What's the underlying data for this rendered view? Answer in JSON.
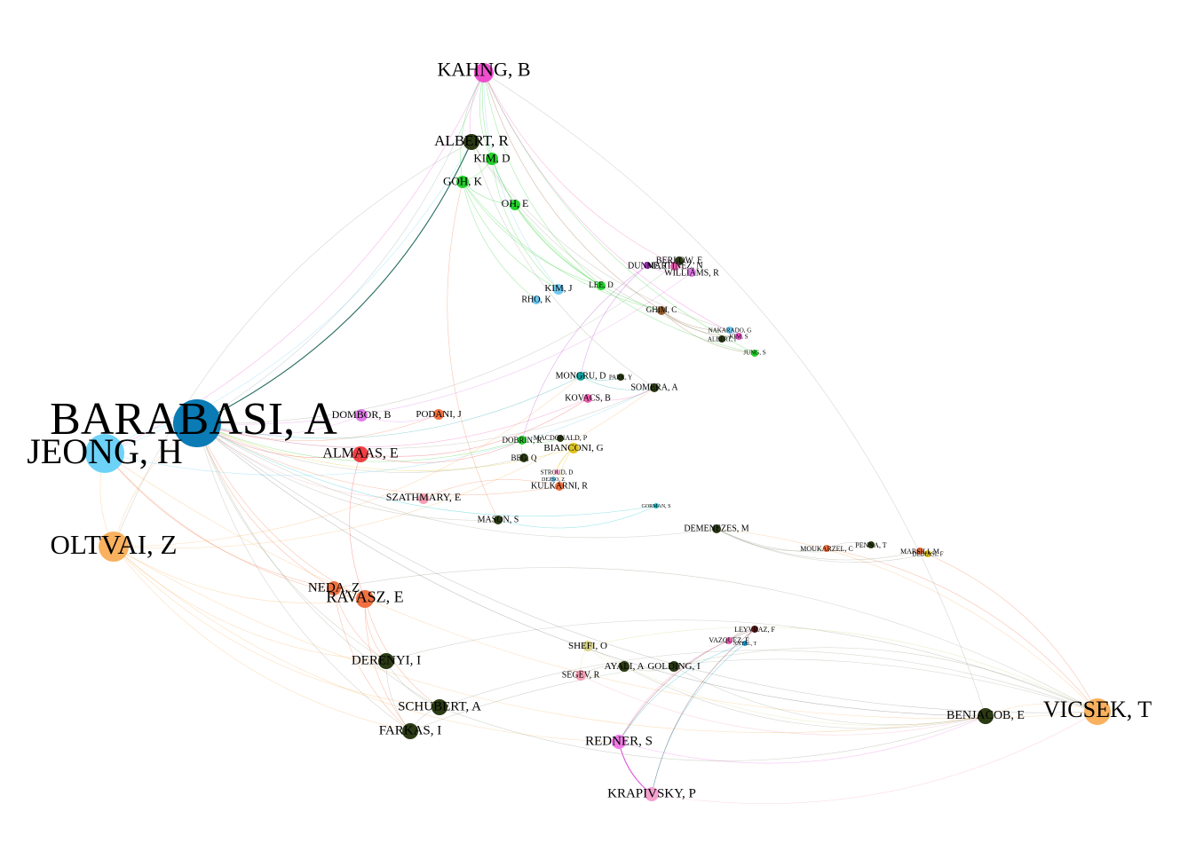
{
  "nodes": [
    {
      "id": "barabasi",
      "label": "BARABASI, A",
      "color": "#0a7bb5",
      "degree": 10
    },
    {
      "id": "jeong",
      "label": "JEONG, H",
      "color": "#6dd2f7",
      "degree": 8
    },
    {
      "id": "oltvai",
      "label": "OLTVAI, Z",
      "color": "#f9b15f",
      "degree": 7
    },
    {
      "id": "vicsek",
      "label": "VICSEK, T",
      "color": "#f9b15f",
      "degree": 7
    },
    {
      "id": "kahng",
      "label": "KAHNG, B",
      "color": "#ef4fcf",
      "degree": 5
    },
    {
      "id": "albert_r",
      "label": "ALBERT, R",
      "color": "#2b3a14",
      "degree": 4
    },
    {
      "id": "kim_d",
      "label": "KIM, D",
      "color": "#23d12b",
      "degree": 3
    },
    {
      "id": "goh_k",
      "label": "GOH, K",
      "color": "#23d12b",
      "degree": 3
    },
    {
      "id": "oh_e",
      "label": "OH, E",
      "color": "#23d12b",
      "degree": 2
    },
    {
      "id": "berlow",
      "label": "BERLOW, E",
      "color": "#2b3a14",
      "degree": 2
    },
    {
      "id": "dunne",
      "label": "DUNNE, J",
      "color": "#b43bd1",
      "degree": 2
    },
    {
      "id": "martinez",
      "label": "MARTINEZ, N",
      "color": "#f15fb3",
      "degree": 2
    },
    {
      "id": "williams",
      "label": "WILLIAMS, R",
      "color": "#e07be8",
      "degree": 2
    },
    {
      "id": "kim_j",
      "label": "KIM, J",
      "color": "#6dc9f2",
      "degree": 2
    },
    {
      "id": "lee_d",
      "label": "LEE, D",
      "color": "#23d12b",
      "degree": 2
    },
    {
      "id": "rho_k",
      "label": "RHO, K",
      "color": "#6dc9f2",
      "degree": 2
    },
    {
      "id": "ghim",
      "label": "GHIM, C",
      "color": "#8c5a2e",
      "degree": 2
    },
    {
      "id": "nakarado",
      "label": "NAKARADO, G",
      "color": "#6dc9f2",
      "degree": 1
    },
    {
      "id": "kim_s",
      "label": "KIM, S",
      "color": "#ef4fcf",
      "degree": 1
    },
    {
      "id": "albert_i",
      "label": "ALBERT, I",
      "color": "#2b3a14",
      "degree": 1
    },
    {
      "id": "jung",
      "label": "JUNG, S",
      "color": "#23d12b",
      "degree": 1
    },
    {
      "id": "mongru",
      "label": "MONGRU, D",
      "color": "#12a2a2",
      "degree": 2
    },
    {
      "id": "park_y",
      "label": "PARK, Y",
      "color": "#2b3a14",
      "degree": 1
    },
    {
      "id": "somera",
      "label": "SOMERA, A",
      "color": "#2b3a14",
      "degree": 2
    },
    {
      "id": "kovacs",
      "label": "KOVACS, B",
      "color": "#f15fb3",
      "degree": 2
    },
    {
      "id": "dombor",
      "label": "DOMBOR, B",
      "color": "#e07be8",
      "degree": 2
    },
    {
      "id": "podani",
      "label": "PODANI, J",
      "color": "#f07040",
      "degree": 2
    },
    {
      "id": "almaas",
      "label": "ALMAAS, E",
      "color": "#ef3f44",
      "degree": 3
    },
    {
      "id": "dobrin",
      "label": "DOBRIN, R",
      "color": "#23d12b",
      "degree": 2
    },
    {
      "id": "macdonald",
      "label": "MACDONALD, P",
      "color": "#2b3a14",
      "degree": 1
    },
    {
      "id": "bianconi",
      "label": "BIANCONI, G",
      "color": "#e0c31f",
      "degree": 2
    },
    {
      "id": "beg",
      "label": "BEG, Q",
      "color": "#2b3a14",
      "degree": 2
    },
    {
      "id": "stroud",
      "label": "STROUD, D",
      "color": "#f5a0cf",
      "degree": 1
    },
    {
      "id": "dezso",
      "label": "DEZSO, Z",
      "color": "#6dc9f2",
      "degree": 1
    },
    {
      "id": "kulkarni",
      "label": "KULKARNI, R",
      "color": "#f07040",
      "degree": 2
    },
    {
      "id": "szathmary",
      "label": "SZATHMARY, E",
      "color": "#f5a0b5",
      "degree": 2
    },
    {
      "id": "gorman",
      "label": "GORMAN, S",
      "color": "#12c3d2",
      "degree": 1
    },
    {
      "id": "mason",
      "label": "MASON, S",
      "color": "#2b3a14",
      "degree": 2
    },
    {
      "id": "demenezes",
      "label": "DEMENEZES, M",
      "color": "#2b3a14",
      "degree": 2
    },
    {
      "id": "moukarzel",
      "label": "MOUKARZEL, C",
      "color": "#f07040",
      "degree": 1
    },
    {
      "id": "penna",
      "label": "PENNA, T",
      "color": "#2b3a14",
      "degree": 1
    },
    {
      "id": "marsili",
      "label": "MARSILI, M",
      "color": "#f07040",
      "degree": 1
    },
    {
      "id": "debiasi",
      "label": "DEBIASI, F",
      "color": "#e0c31f",
      "degree": 1
    },
    {
      "id": "neda",
      "label": "NEDA, Z",
      "color": "#f07040",
      "degree": 3
    },
    {
      "id": "ravasz",
      "label": "RAVASZ, E",
      "color": "#f07040",
      "degree": 4
    },
    {
      "id": "derenyi",
      "label": "DERENYI, I",
      "color": "#2b3a14",
      "degree": 4
    },
    {
      "id": "schubert",
      "label": "SCHUBERT, A",
      "color": "#2b3a14",
      "degree": 4
    },
    {
      "id": "farkas",
      "label": "FARKAS, I",
      "color": "#2b3a14",
      "degree": 4
    },
    {
      "id": "leyvraz",
      "label": "LEYVRAZ, F",
      "color": "#5a1515",
      "degree": 1
    },
    {
      "id": "vazquez",
      "label": "VAZQUEZ, F",
      "color": "#f15fb3",
      "degree": 1
    },
    {
      "id": "antal",
      "label": "ANTAL, T",
      "color": "#12a2d2",
      "degree": 1
    },
    {
      "id": "shefi",
      "label": "SHEFI, O",
      "color": "#d8d48a",
      "degree": 2
    },
    {
      "id": "ayali",
      "label": "AYALI, A",
      "color": "#2b3a14",
      "degree": 2
    },
    {
      "id": "golding",
      "label": "GOLDING, I",
      "color": "#2b3a14",
      "degree": 2
    },
    {
      "id": "segev",
      "label": "SEGEV, R",
      "color": "#f5a0b5",
      "degree": 2
    },
    {
      "id": "benjacob",
      "label": "BENJACOB, E",
      "color": "#2b3a14",
      "degree": 4
    },
    {
      "id": "redner",
      "label": "REDNER, S",
      "color": "#f07be8",
      "degree": 3
    },
    {
      "id": "krapivsky",
      "label": "KRAPIVSKY, P",
      "color": "#f5a0cf",
      "degree": 3
    }
  ],
  "edges": [
    {
      "source": "barabasi",
      "target": "albert_r",
      "color": "#0b5b4b"
    },
    {
      "source": "barabasi",
      "target": "jeong",
      "color": "#6dd2f7"
    },
    {
      "source": "barabasi",
      "target": "oltvai",
      "color": "#f9b15f"
    },
    {
      "source": "barabasi",
      "target": "kahng",
      "color": "#8aa0a6"
    },
    {
      "source": "barabasi",
      "target": "vicsek",
      "color": "#8a8a8a"
    },
    {
      "source": "barabasi",
      "target": "ravasz",
      "color": "#f07040"
    },
    {
      "source": "barabasi",
      "target": "almaas",
      "color": "#ef3f44"
    },
    {
      "source": "barabasi",
      "target": "dombor",
      "color": "#e07be8"
    },
    {
      "source": "barabasi",
      "target": "podani",
      "color": "#f07040"
    },
    {
      "source": "barabasi",
      "target": "neda",
      "color": "#f07040"
    },
    {
      "source": "barabasi",
      "target": "derenyi",
      "color": "#9aa08a"
    },
    {
      "source": "barabasi",
      "target": "schubert",
      "color": "#9aa08a"
    },
    {
      "source": "barabasi",
      "target": "farkas",
      "color": "#9aa08a"
    },
    {
      "source": "barabasi",
      "target": "mason",
      "color": "#9aa08a"
    },
    {
      "source": "barabasi",
      "target": "szathmary",
      "color": "#f5a0b5"
    },
    {
      "source": "barabasi",
      "target": "bianconi",
      "color": "#e0c31f"
    },
    {
      "source": "barabasi",
      "target": "dobrin",
      "color": "#23d12b"
    },
    {
      "source": "barabasi",
      "target": "kulkarni",
      "color": "#f07040"
    },
    {
      "source": "barabasi",
      "target": "mongru",
      "color": "#12a2a2"
    },
    {
      "source": "barabasi",
      "target": "somera",
      "color": "#9aa08a"
    },
    {
      "source": "barabasi",
      "target": "kovacs",
      "color": "#f15fb3"
    },
    {
      "source": "barabasi",
      "target": "demenezes",
      "color": "#9aa08a"
    },
    {
      "source": "barabasi",
      "target": "beg",
      "color": "#9aa08a"
    },
    {
      "source": "barabasi",
      "target": "berlow",
      "color": "#9aa08a"
    },
    {
      "source": "barabasi",
      "target": "williams",
      "color": "#e07be8"
    },
    {
      "source": "barabasi",
      "target": "gorman",
      "color": "#12c3d2"
    },
    {
      "source": "jeong",
      "target": "oltvai",
      "color": "#f9b15f"
    },
    {
      "source": "jeong",
      "target": "albert_r",
      "color": "#6dd2f7"
    },
    {
      "source": "jeong",
      "target": "neda",
      "color": "#f07040"
    },
    {
      "source": "jeong",
      "target": "kahng",
      "color": "#ef4fcf"
    },
    {
      "source": "jeong",
      "target": "somera",
      "color": "#6dd2f7"
    },
    {
      "source": "jeong",
      "target": "ravasz",
      "color": "#f07040"
    },
    {
      "source": "jeong",
      "target": "vicsek",
      "color": "#f9b15f"
    },
    {
      "source": "oltvai",
      "target": "ravasz",
      "color": "#f9b15f"
    },
    {
      "source": "oltvai",
      "target": "somera",
      "color": "#f9b15f"
    },
    {
      "source": "oltvai",
      "target": "mongru",
      "color": "#f9b15f"
    },
    {
      "source": "oltvai",
      "target": "derenyi",
      "color": "#f9b15f"
    },
    {
      "source": "oltvai",
      "target": "schubert",
      "color": "#f9b15f"
    },
    {
      "source": "oltvai",
      "target": "farkas",
      "color": "#f9b15f"
    },
    {
      "source": "oltvai",
      "target": "benjacob",
      "color": "#f9b15f"
    },
    {
      "source": "oltvai",
      "target": "redner",
      "color": "#f9b15f"
    },
    {
      "source": "vicsek",
      "target": "benjacob",
      "color": "#f9b15f"
    },
    {
      "source": "vicsek",
      "target": "demenezes",
      "color": "#f9b15f"
    },
    {
      "source": "vicsek",
      "target": "farkas",
      "color": "#9aa08a"
    },
    {
      "source": "vicsek",
      "target": "derenyi",
      "color": "#9aa08a"
    },
    {
      "source": "vicsek",
      "target": "neda",
      "color": "#9aa08a"
    },
    {
      "source": "vicsek",
      "target": "shefi",
      "color": "#d8d48a"
    },
    {
      "source": "vicsek",
      "target": "golding",
      "color": "#9aa08a"
    },
    {
      "source": "vicsek",
      "target": "schubert",
      "color": "#9aa08a"
    },
    {
      "source": "vicsek",
      "target": "moukarzel",
      "color": "#f07040"
    },
    {
      "source": "vicsek",
      "target": "marsili",
      "color": "#f07040"
    },
    {
      "source": "kahng",
      "target": "albert_r",
      "color": "#ef4fcf"
    },
    {
      "source": "kahng",
      "target": "kim_d",
      "color": "#23d12b"
    },
    {
      "source": "kahng",
      "target": "goh_k",
      "color": "#23d12b"
    },
    {
      "source": "kahng",
      "target": "oh_e",
      "color": "#23d12b"
    },
    {
      "source": "kahng",
      "target": "kim_j",
      "color": "#6dc9f2"
    },
    {
      "source": "kahng",
      "target": "lee_d",
      "color": "#23d12b"
    },
    {
      "source": "kahng",
      "target": "ghim",
      "color": "#8c5a2e"
    },
    {
      "source": "kahng",
      "target": "jung",
      "color": "#23d12b"
    },
    {
      "source": "kahng",
      "target": "kim_s",
      "color": "#ef4fcf"
    },
    {
      "source": "kahng",
      "target": "williams",
      "color": "#f15fb3"
    },
    {
      "source": "goh_k",
      "target": "kim_d",
      "color": "#23d12b"
    },
    {
      "source": "goh_k",
      "target": "kim_j",
      "color": "#23d12b"
    },
    {
      "source": "goh_k",
      "target": "oh_e",
      "color": "#23d12b"
    },
    {
      "source": "goh_k",
      "target": "rho_k",
      "color": "#23d12b"
    },
    {
      "source": "goh_k",
      "target": "lee_d",
      "color": "#23d12b"
    },
    {
      "source": "goh_k",
      "target": "ghim",
      "color": "#23d12b"
    },
    {
      "source": "goh_k",
      "target": "mason",
      "color": "#f07040"
    },
    {
      "source": "kim_d",
      "target": "kim_j",
      "color": "#23d12b"
    },
    {
      "source": "kim_d",
      "target": "lee_d",
      "color": "#23d12b"
    },
    {
      "source": "oh_e",
      "target": "ghim",
      "color": "#23d12b"
    },
    {
      "source": "oh_e",
      "target": "jung",
      "color": "#23d12b"
    },
    {
      "source": "albert_r",
      "target": "somera",
      "color": "#9aa08a"
    },
    {
      "source": "albert_r",
      "target": "nakarado",
      "color": "#9aa08a"
    },
    {
      "source": "albert_r",
      "target": "albert_i",
      "color": "#9aa08a"
    },
    {
      "source": "albert_r",
      "target": "oltvai",
      "color": "#9aa08a"
    },
    {
      "source": "ghim",
      "target": "nakarado",
      "color": "#8c5a2e"
    },
    {
      "source": "ghim",
      "target": "kim_s",
      "color": "#8c5a2e"
    },
    {
      "source": "ghim",
      "target": "jung",
      "color": "#8c5a2e"
    },
    {
      "source": "berlow",
      "target": "dunne",
      "color": "#b43bd1"
    },
    {
      "source": "berlow",
      "target": "martinez",
      "color": "#f15fb3"
    },
    {
      "source": "berlow",
      "target": "williams",
      "color": "#e07be8"
    },
    {
      "source": "dunne",
      "target": "williams",
      "color": "#e07be8"
    },
    {
      "source": "dunne",
      "target": "dobrin",
      "color": "#b43bd1"
    },
    {
      "source": "dunne",
      "target": "mongru",
      "color": "#b43bd1"
    },
    {
      "source": "mongru",
      "target": "park_y",
      "color": "#12a2a2"
    },
    {
      "source": "mongru",
      "target": "somera",
      "color": "#12a2a2"
    },
    {
      "source": "kovacs",
      "target": "somera",
      "color": "#f15fb3"
    },
    {
      "source": "dombor",
      "target": "podani",
      "color": "#e07be8"
    },
    {
      "source": "almaas",
      "target": "kovacs",
      "color": "#ef3f44"
    },
    {
      "source": "almaas",
      "target": "dobrin",
      "color": "#ef3f44"
    },
    {
      "source": "almaas",
      "target": "ravasz",
      "color": "#ef3f44"
    },
    {
      "source": "dobrin",
      "target": "macdonald",
      "color": "#23d12b"
    },
    {
      "source": "dobrin",
      "target": "beg",
      "color": "#23d12b"
    },
    {
      "source": "bianconi",
      "target": "kulkarni",
      "color": "#e0c31f"
    },
    {
      "source": "bianconi",
      "target": "stroud",
      "color": "#e0c31f"
    },
    {
      "source": "bianconi",
      "target": "dezso",
      "color": "#e0c31f"
    },
    {
      "source": "kulkarni",
      "target": "szathmary",
      "color": "#f07040"
    },
    {
      "source": "mason",
      "target": "gorman",
      "color": "#12c3d2"
    },
    {
      "source": "demenezes",
      "target": "moukarzel",
      "color": "#9aa08a"
    },
    {
      "source": "demenezes",
      "target": "penna",
      "color": "#9aa08a"
    },
    {
      "source": "demenezes",
      "target": "marsili",
      "color": "#9aa08a"
    },
    {
      "source": "demenezes",
      "target": "debiasi",
      "color": "#9aa08a"
    },
    {
      "source": "penna",
      "target": "moukarzel",
      "color": "#9aa08a"
    },
    {
      "source": "neda",
      "target": "ravasz",
      "color": "#f07040"
    },
    {
      "source": "neda",
      "target": "derenyi",
      "color": "#f07040"
    },
    {
      "source": "neda",
      "target": "farkas",
      "color": "#f07040"
    },
    {
      "source": "ravasz",
      "target": "derenyi",
      "color": "#f07040"
    },
    {
      "source": "ravasz",
      "target": "schubert",
      "color": "#f07040"
    },
    {
      "source": "ravasz",
      "target": "farkas",
      "color": "#f07040"
    },
    {
      "source": "derenyi",
      "target": "farkas",
      "color": "#9aa08a"
    },
    {
      "source": "derenyi",
      "target": "schubert",
      "color": "#9aa08a"
    },
    {
      "source": "schubert",
      "target": "farkas",
      "color": "#9aa08a"
    },
    {
      "source": "shefi",
      "target": "ayali",
      "color": "#d8d48a"
    },
    {
      "source": "shefi",
      "target": "segev",
      "color": "#d8d48a"
    },
    {
      "source": "shefi",
      "target": "benjacob",
      "color": "#d8d48a"
    },
    {
      "source": "ayali",
      "target": "golding",
      "color": "#9aa08a"
    },
    {
      "source": "ayali",
      "target": "segev",
      "color": "#9aa08a"
    },
    {
      "source": "ayali",
      "target": "benjacob",
      "color": "#9aa08a"
    },
    {
      "source": "golding",
      "target": "benjacob",
      "color": "#9aa08a"
    },
    {
      "source": "segev",
      "target": "benjacob",
      "color": "#f5a0b5"
    },
    {
      "source": "leyvraz",
      "target": "vazquez",
      "color": "#5a1515"
    },
    {
      "source": "leyvraz",
      "target": "antal",
      "color": "#5a1515"
    },
    {
      "source": "leyvraz",
      "target": "krapivsky",
      "color": "#5a1515"
    },
    {
      "source": "leyvraz",
      "target": "redner",
      "color": "#5a1515"
    },
    {
      "source": "vazquez",
      "target": "redner",
      "color": "#f15fb3"
    },
    {
      "source": "antal",
      "target": "krapivsky",
      "color": "#12a2d2"
    },
    {
      "source": "antal",
      "target": "redner",
      "color": "#12a2d2"
    },
    {
      "source": "redner",
      "target": "krapivsky",
      "color": "#e040d8"
    },
    {
      "source": "krapivsky",
      "target": "vicsek",
      "color": "#f5a0cf"
    },
    {
      "source": "redner",
      "target": "benjacob",
      "color": "#f07be8"
    },
    {
      "source": "benjacob",
      "target": "kahng",
      "color": "#9aa08a"
    },
    {
      "source": "schubert",
      "target": "benjacob",
      "color": "#9aa08a"
    },
    {
      "source": "barabasi",
      "target": "benjacob",
      "color": "#6a6a6a"
    }
  ]
}
